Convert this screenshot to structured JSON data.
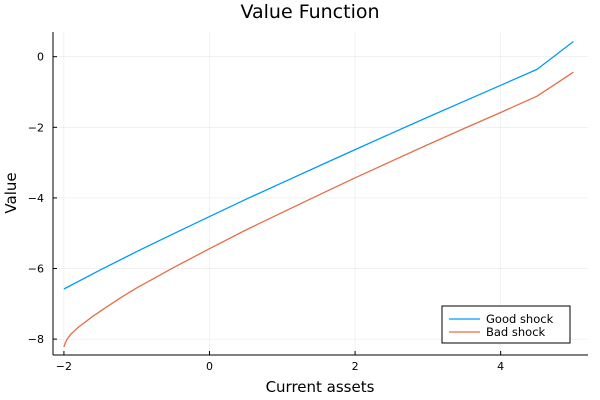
{
  "chart_data": {
    "type": "line",
    "title": "Value Function",
    "xlabel": "Current assets",
    "ylabel": "Value",
    "xlim": [
      -2.15,
      5.2
    ],
    "ylim": [
      -8.45,
      0.7
    ],
    "xticks": [
      -2,
      0,
      2,
      4
    ],
    "yticks": [
      0,
      -2,
      -4,
      -6,
      -8
    ],
    "xtick_labels": [
      "−2",
      "0",
      "2",
      "4"
    ],
    "ytick_labels": [
      "0",
      "−2",
      "−4",
      "−6",
      "−8"
    ],
    "grid": true,
    "legend_position": "bottom-right",
    "series": [
      {
        "name": "Good shock",
        "color": "#009AFA",
        "x": [
          -2,
          -1.5,
          -1,
          -0.5,
          0,
          0.5,
          1,
          1.5,
          2,
          2.5,
          3,
          3.5,
          4,
          4.5,
          5
        ],
        "y": [
          -6.58,
          -6.04,
          -5.52,
          -5.02,
          -4.53,
          -4.04,
          -3.57,
          -3.1,
          -2.63,
          -2.17,
          -1.71,
          -1.26,
          -0.81,
          -0.36,
          0.43
        ]
      },
      {
        "name": "Bad shock",
        "color": "#E36F47",
        "x": [
          -2,
          -1.98,
          -1.95,
          -1.9,
          -1.8,
          -1.6,
          -1.4,
          -1.2,
          -1,
          -0.5,
          0,
          0.5,
          1,
          1.5,
          2,
          2.5,
          3,
          3.5,
          4,
          4.5,
          5
        ],
        "y": [
          -8.22,
          -8.1,
          -7.98,
          -7.85,
          -7.66,
          -7.35,
          -7.07,
          -6.8,
          -6.55,
          -5.98,
          -5.44,
          -4.91,
          -4.41,
          -3.92,
          -3.43,
          -2.96,
          -2.49,
          -2.03,
          -1.58,
          -1.12,
          -0.44
        ]
      }
    ]
  }
}
